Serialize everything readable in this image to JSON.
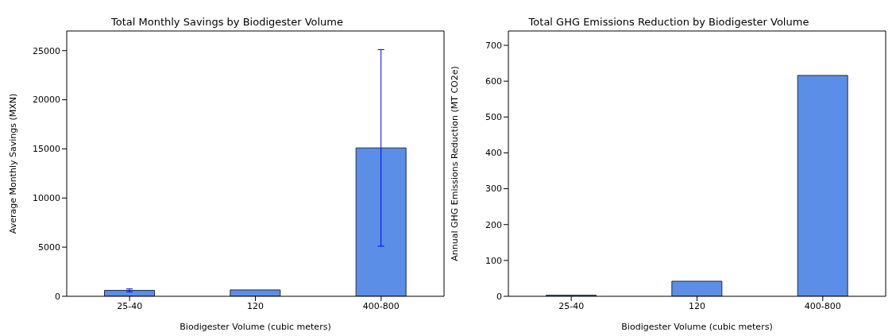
{
  "chart_data": [
    {
      "type": "bar",
      "title": "Total Monthly Savings by Biodigester Volume",
      "xlabel": "Biodigester Volume (cubic meters)",
      "ylabel": "Average Monthly Savings (MXN)",
      "categories": [
        "25-40",
        "120",
        "400-800"
      ],
      "values": [
        600,
        650,
        15100
      ],
      "errors": [
        150,
        null,
        10000
      ],
      "color": "#5b8ee6",
      "ylim": [
        0,
        27000
      ],
      "yticks": [
        0,
        5000,
        10000,
        15000,
        20000,
        25000
      ],
      "grid": false,
      "legend": false
    },
    {
      "type": "bar",
      "title": "Total GHG Emissions Reduction by Biodigester Volume",
      "xlabel": "Biodigester Volume (cubic meters)",
      "ylabel": "Annual GHG Emissions Reduction (MT CO2e)",
      "categories": [
        "25-40",
        "120",
        "400-800"
      ],
      "values": [
        3,
        42,
        616
      ],
      "color": "#5b8ee6",
      "ylim": [
        0,
        740
      ],
      "yticks": [
        0,
        100,
        200,
        300,
        400,
        500,
        600,
        700
      ],
      "grid": false,
      "legend": false
    }
  ]
}
